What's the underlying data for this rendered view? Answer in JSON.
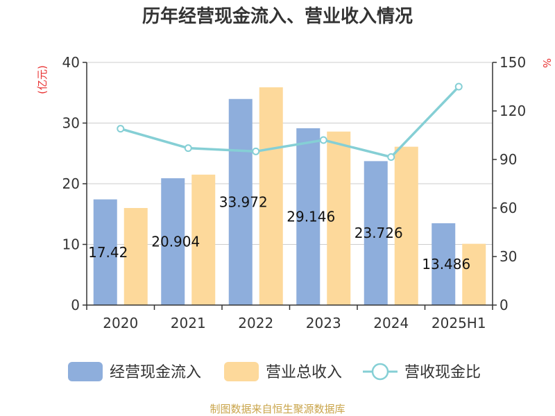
{
  "chart_data": {
    "type": "bar",
    "title": "历年经营现金流入、营业收入情况",
    "categories": [
      "2020",
      "2021",
      "2022",
      "2023",
      "2024",
      "2025H1"
    ],
    "series": [
      {
        "name": "经营现金流入",
        "type": "bar",
        "axis": "left",
        "color": "#8eaedc",
        "values": [
          17.42,
          20.904,
          33.972,
          29.146,
          23.726,
          13.486
        ],
        "value_labels": [
          "17.42",
          "20.904",
          "33.972",
          "29.146",
          "23.726",
          "13.486"
        ]
      },
      {
        "name": "营业总收入",
        "type": "bar",
        "axis": "left",
        "color": "#fdd99b",
        "values": [
          16.0,
          21.5,
          35.9,
          28.6,
          26.1,
          10.1
        ]
      },
      {
        "name": "营收现金比",
        "type": "line",
        "axis": "right",
        "color": "#85cfd5",
        "values": [
          109,
          97,
          95,
          102,
          91.5,
          135
        ]
      }
    ],
    "y_left": {
      "unit": "(亿元)",
      "range": [
        0,
        40
      ],
      "ticks": [
        "0",
        "10",
        "20",
        "30",
        "40"
      ]
    },
    "y_right": {
      "unit": "%",
      "range": [
        0,
        150
      ],
      "ticks": [
        "0",
        "30",
        "60",
        "90",
        "120",
        "150"
      ]
    },
    "grid": true,
    "legend_position": "bottom"
  },
  "source": "制图数据来自恒生聚源数据库",
  "colors": {
    "unit_label": "#e83030",
    "source": "#c9a44a",
    "axis": "#333333",
    "grid": "#cccccc"
  }
}
